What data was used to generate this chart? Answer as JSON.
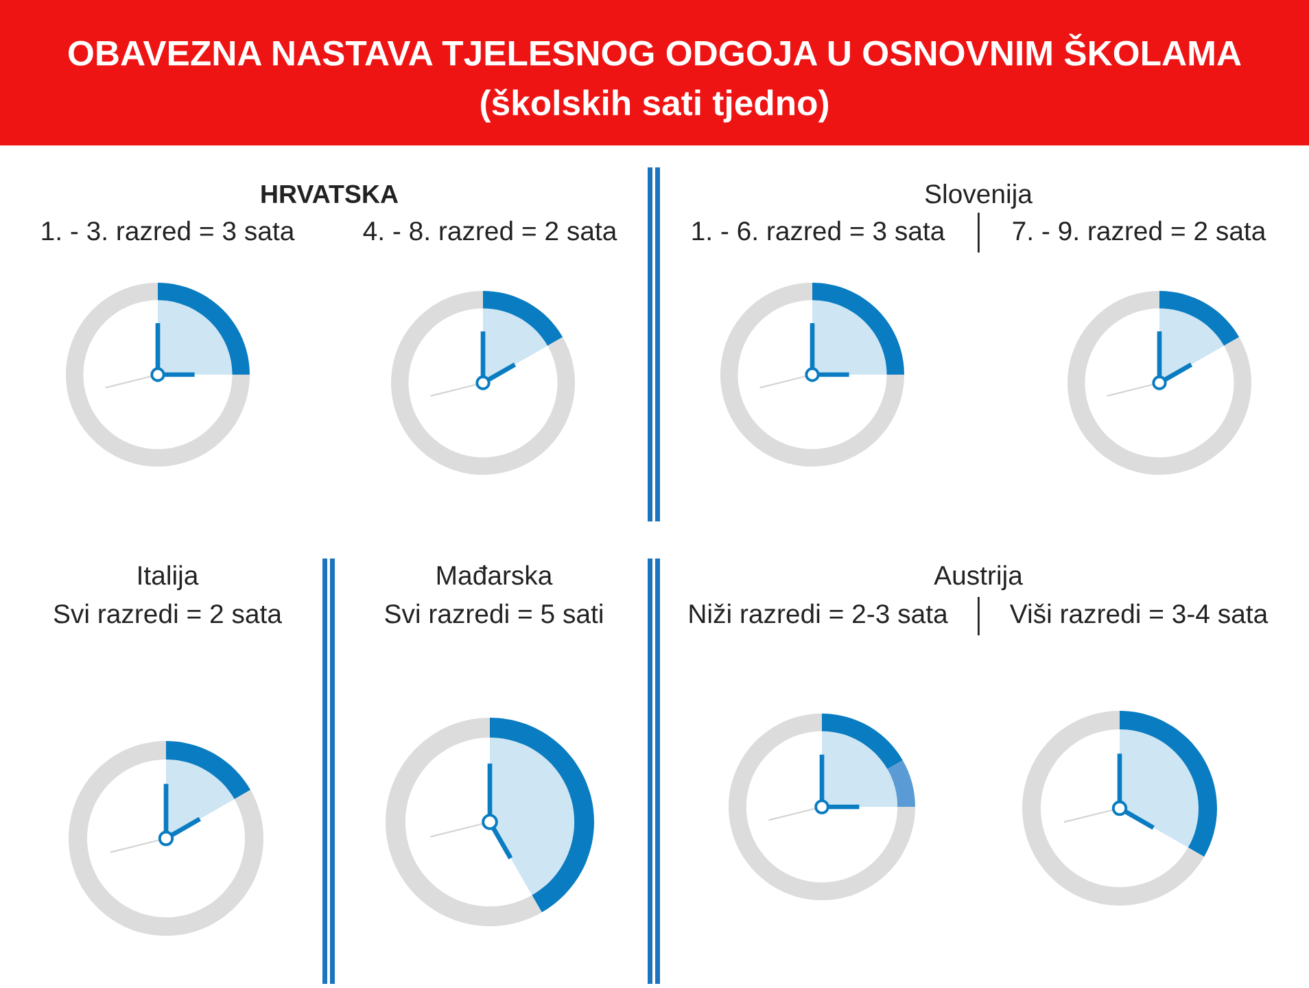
{
  "chart_data": [
    {
      "type": "other",
      "title": "OBAVEZNA NASTAVA TJELESNOG ODGOJA U OSNOVNIM ŠKOLAMA",
      "subtitle": "(školskih sati tjedno)"
    },
    {
      "type": "other",
      "title": "HRVATSKA"
    },
    {
      "type": "donut",
      "title": "1. - 3. razred = 3 sata",
      "categories": [
        null,
        null
      ],
      "values": [
        25,
        75
      ],
      "colors": [
        "#0a7cc1",
        "#dcdcdc"
      ]
    },
    {
      "type": "donut",
      "title": "4. - 8. razred = 2 sata",
      "categories": [
        null,
        null
      ],
      "values": [
        16.7,
        83.3
      ],
      "colors": [
        "#0a7cc1",
        "#dcdcdc"
      ]
    },
    {
      "type": "other",
      "title": "Slovenija"
    },
    {
      "type": "donut",
      "title": "1. - 6. razred = 3 sata",
      "categories": [
        null,
        null
      ],
      "values": [
        25,
        75
      ],
      "colors": [
        "#0a7cc1",
        "#dcdcdc"
      ]
    },
    {
      "type": "donut",
      "title": "7. - 9. razred = 2 sata",
      "categories": [
        null,
        null
      ],
      "values": [
        16.7,
        83.3
      ],
      "colors": [
        "#0a7cc1",
        "#dcdcdc"
      ]
    },
    {
      "type": "donut",
      "title": "Italija",
      "subtitle": "Svi razredi = 2 sata",
      "categories": [
        null,
        null
      ],
      "values": [
        16.7,
        83.3
      ],
      "colors": [
        "#0a7cc1",
        "#dcdcdc"
      ]
    },
    {
      "type": "donut",
      "title": "Mađarska",
      "subtitle": "Svi razredi = 5 sati",
      "categories": [
        null,
        null
      ],
      "values": [
        41.7,
        58.3
      ],
      "colors": [
        "#0a7cc1",
        "#dcdcdc"
      ]
    },
    {
      "type": "other",
      "title": "Austrija"
    },
    {
      "type": "donut",
      "title": "Niži razredi = 2-3 sata",
      "categories": [
        null,
        null,
        null
      ],
      "values": [
        16.7,
        8.3,
        75
      ],
      "colors": [
        "#0a7cc1",
        "#5b9bd5",
        "#dcdcdc"
      ]
    },
    {
      "type": "donut",
      "title": "Viši razredi = 3-4 sata",
      "categories": [
        null,
        null,
        null
      ],
      "values": [
        25,
        8.3,
        66.7
      ],
      "colors": [
        "#0a7cc1",
        "#0a7cc1",
        "#dcdcdc"
      ]
    }
  ]
}
